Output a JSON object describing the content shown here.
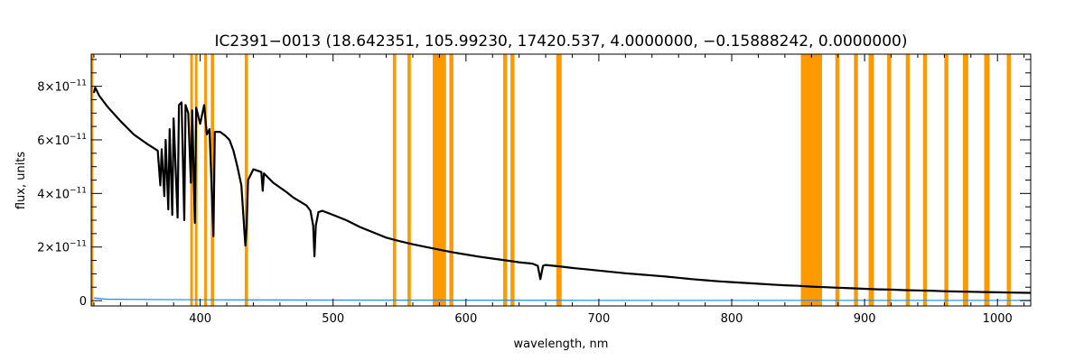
{
  "chart_data": {
    "type": "line",
    "title": "IC2391−0013   (18.642351, 105.99230, 17420.537, 4.0000000, −0.15888242, 0.0000000)",
    "xlabel": "wavelength, nm",
    "ylabel": "flux, units",
    "xlim": [
      318,
      1025
    ],
    "ylim": [
      -2e-12,
      9.2e-11
    ],
    "x_ticks": [
      400,
      500,
      600,
      700,
      800,
      900,
      1000
    ],
    "x_tick_labels": [
      "400",
      "500",
      "600",
      "700",
      "800",
      "900",
      "1000"
    ],
    "y_ticks": [
      0,
      2e-11,
      4e-11,
      6e-11,
      8e-11
    ],
    "y_tick_labels": [
      {
        "base": "0",
        "exp": ""
      },
      {
        "base": "2×10",
        "exp": "−11"
      },
      {
        "base": "4×10",
        "exp": "−11"
      },
      {
        "base": "6×10",
        "exp": "−11"
      },
      {
        "base": "8×10",
        "exp": "−11"
      }
    ],
    "grid": false,
    "colors": {
      "flux": "#000000",
      "error": "#1a8cff",
      "mask": "#ff9900"
    },
    "mask_regions": [
      [
        318,
        319.5
      ],
      [
        392.5,
        394.5
      ],
      [
        396,
        398
      ],
      [
        403,
        405
      ],
      [
        408,
        410.5
      ],
      [
        433.5,
        436
      ],
      [
        545,
        547.5
      ],
      [
        556,
        558.5
      ],
      [
        575,
        585
      ],
      [
        587.5,
        590.5
      ],
      [
        628,
        631
      ],
      [
        633.5,
        636.5
      ],
      [
        668,
        672
      ],
      [
        852,
        868
      ],
      [
        878,
        881
      ],
      [
        892,
        895
      ],
      [
        903,
        907
      ],
      [
        917,
        920
      ],
      [
        931,
        934
      ],
      [
        944,
        947
      ],
      [
        960,
        963
      ],
      [
        974,
        978
      ],
      [
        990,
        994
      ],
      [
        1007,
        1010
      ]
    ],
    "series": [
      {
        "values": [
          [
            320,
            7.75e-11
          ],
          [
            321,
            7.95e-11
          ],
          [
            324,
            7.65e-11
          ],
          [
            330,
            7.25e-11
          ],
          [
            340,
            6.7e-11
          ],
          [
            350,
            6.2e-11
          ],
          [
            360,
            5.85e-11
          ],
          [
            368,
            5.6e-11
          ],
          [
            370,
            4.3e-11
          ],
          [
            371,
            5.65e-11
          ],
          [
            373,
            3.9e-11
          ],
          [
            374,
            6e-11
          ],
          [
            376,
            3.4e-11
          ],
          [
            377,
            6.4e-11
          ],
          [
            379,
            3.2e-11
          ],
          [
            380,
            6.8e-11
          ],
          [
            383,
            3.1e-11
          ],
          [
            384,
            7.3e-11
          ],
          [
            386,
            7.4e-11
          ],
          [
            388,
            3e-11
          ],
          [
            389,
            7.3e-11
          ],
          [
            391,
            7e-11
          ],
          [
            393,
            4.4e-11
          ],
          [
            394,
            7.1e-11
          ],
          [
            396,
            2.9e-11
          ],
          [
            397,
            7.2e-11
          ],
          [
            400,
            6.6e-11
          ],
          [
            403,
            7.3e-11
          ],
          [
            405,
            6.2e-11
          ],
          [
            407,
            6.4e-11
          ],
          [
            410,
            2.4e-11
          ],
          [
            411,
            6.3e-11
          ],
          [
            415,
            6.3e-11
          ],
          [
            419,
            6.15e-11
          ],
          [
            422,
            6e-11
          ],
          [
            425,
            5.6e-11
          ],
          [
            428,
            5e-11
          ],
          [
            431,
            4.3e-11
          ],
          [
            434,
            2.05e-11
          ],
          [
            435,
            2.8e-11
          ],
          [
            436,
            4.5e-11
          ],
          [
            440,
            4.9e-11
          ],
          [
            446,
            4.8e-11
          ],
          [
            447,
            4.1e-11
          ],
          [
            448,
            4.75e-11
          ],
          [
            455,
            4.4e-11
          ],
          [
            465,
            4.05e-11
          ],
          [
            470,
            3.85e-11
          ],
          [
            475,
            3.7e-11
          ],
          [
            480,
            3.55e-11
          ],
          [
            483,
            3.35e-11
          ],
          [
            485,
            2.8e-11
          ],
          [
            486,
            1.65e-11
          ],
          [
            487,
            2.8e-11
          ],
          [
            489,
            3.3e-11
          ],
          [
            492,
            3.35e-11
          ],
          [
            500,
            3.2e-11
          ],
          [
            510,
            3e-11
          ],
          [
            520,
            2.75e-11
          ],
          [
            530,
            2.55e-11
          ],
          [
            540,
            2.35e-11
          ],
          [
            550,
            2.22e-11
          ],
          [
            560,
            2.1e-11
          ],
          [
            570,
            2e-11
          ],
          [
            580,
            1.9e-11
          ],
          [
            590,
            1.8e-11
          ],
          [
            600,
            1.72e-11
          ],
          [
            610,
            1.64e-11
          ],
          [
            620,
            1.57e-11
          ],
          [
            630,
            1.5e-11
          ],
          [
            640,
            1.43e-11
          ],
          [
            650,
            1.38e-11
          ],
          [
            654,
            1.3e-11
          ],
          [
            656,
            8e-12
          ],
          [
            658,
            1.3e-11
          ],
          [
            660,
            1.33e-11
          ],
          [
            670,
            1.28e-11
          ],
          [
            680,
            1.22e-11
          ],
          [
            690,
            1.17e-11
          ],
          [
            700,
            1.12e-11
          ],
          [
            710,
            1.07e-11
          ],
          [
            720,
            1.02e-11
          ],
          [
            730,
            9.8e-12
          ],
          [
            740,
            9.4e-12
          ],
          [
            750,
            9e-12
          ],
          [
            760,
            8.5e-12
          ],
          [
            770,
            8e-12
          ],
          [
            780,
            7.6e-12
          ],
          [
            790,
            7.2e-12
          ],
          [
            800,
            6.9e-12
          ],
          [
            810,
            6.6e-12
          ],
          [
            820,
            6.3e-12
          ],
          [
            830,
            6e-12
          ],
          [
            840,
            5.7e-12
          ],
          [
            850,
            5.5e-12
          ],
          [
            860,
            5.2e-12
          ],
          [
            870,
            5e-12
          ],
          [
            880,
            4.8e-12
          ],
          [
            890,
            4.6e-12
          ],
          [
            900,
            4.4e-12
          ],
          [
            910,
            4.2e-12
          ],
          [
            920,
            4.1e-12
          ],
          [
            930,
            3.9e-12
          ],
          [
            940,
            3.8e-12
          ],
          [
            950,
            3.7e-12
          ],
          [
            960,
            3.5e-12
          ],
          [
            970,
            3.4e-12
          ],
          [
            980,
            3.3e-12
          ],
          [
            990,
            3.2e-12
          ],
          [
            1000,
            3.1e-12
          ],
          [
            1010,
            3e-12
          ],
          [
            1025,
            2.9e-12
          ]
        ]
      },
      {
        "values": [
          [
            320,
            1e-12
          ],
          [
            330,
            5e-13
          ],
          [
            400,
            3e-13
          ],
          [
            500,
            2e-13
          ],
          [
            600,
            1.5e-13
          ],
          [
            700,
            1e-13
          ],
          [
            800,
            1e-13
          ],
          [
            900,
            1e-13
          ],
          [
            1000,
            1e-13
          ],
          [
            1025,
            1e-13
          ]
        ]
      }
    ]
  }
}
